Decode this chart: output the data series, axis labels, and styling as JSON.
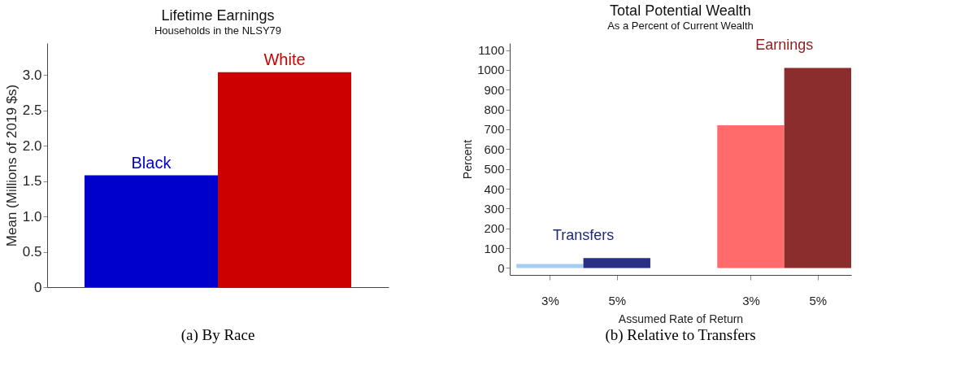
{
  "chart_data": [
    {
      "type": "bar",
      "title": "Lifetime Earnings",
      "subtitle": "Households in the NLSY79",
      "ylabel": "Mean (Millions of 2019 $s)",
      "categories": [
        "Black",
        "White"
      ],
      "series": [
        {
          "values": [
            1.58,
            3.04
          ],
          "colors": [
            "#0000cc",
            "#cc0000"
          ]
        }
      ],
      "ylim": [
        0,
        3.45
      ],
      "yticks": [
        0,
        {
          "value": 0.5,
          "label": "0.5"
        },
        {
          "value": 1,
          "label": "1.0"
        },
        {
          "value": 1.5,
          "label": "1.5"
        },
        {
          "value": 2,
          "label": "2.0"
        },
        {
          "value": 2.5,
          "label": "2.5"
        },
        {
          "value": 3,
          "label": "3.0"
        }
      ],
      "tick_labels": "y",
      "grid": false,
      "annotations": [
        "(a) By Race"
      ]
    },
    {
      "type": "bar",
      "title": "Total Potential Wealth",
      "subtitle": "As a Percent of Current Wealth",
      "xlabel": "Assumed Rate of Return",
      "ylabel": "Percent",
      "categories": [
        "3%",
        "5%",
        null,
        "3%",
        "5%"
      ],
      "series": [
        {
          "name": "Transfers",
          "color": "#1f2a7a",
          "values": [
            20,
            50,
            null,
            null,
            null
          ],
          "colors": [
            "#a6cef5",
            "#2a3185",
            null,
            null,
            null
          ]
        },
        {
          "name": "Earnings",
          "color": "#8b2020",
          "values": [
            null,
            null,
            null,
            720,
            1010
          ],
          "colors": [
            null,
            null,
            null,
            "#ff6b6b",
            "#8b2d2d"
          ]
        }
      ],
      "ylim": [
        -35,
        1135
      ],
      "yticks": [
        0,
        100,
        200,
        300,
        400,
        500,
        600,
        700,
        800,
        900,
        1000,
        1100
      ],
      "grid": false,
      "annotations": [
        "(b) Relative to Transfers"
      ]
    }
  ]
}
